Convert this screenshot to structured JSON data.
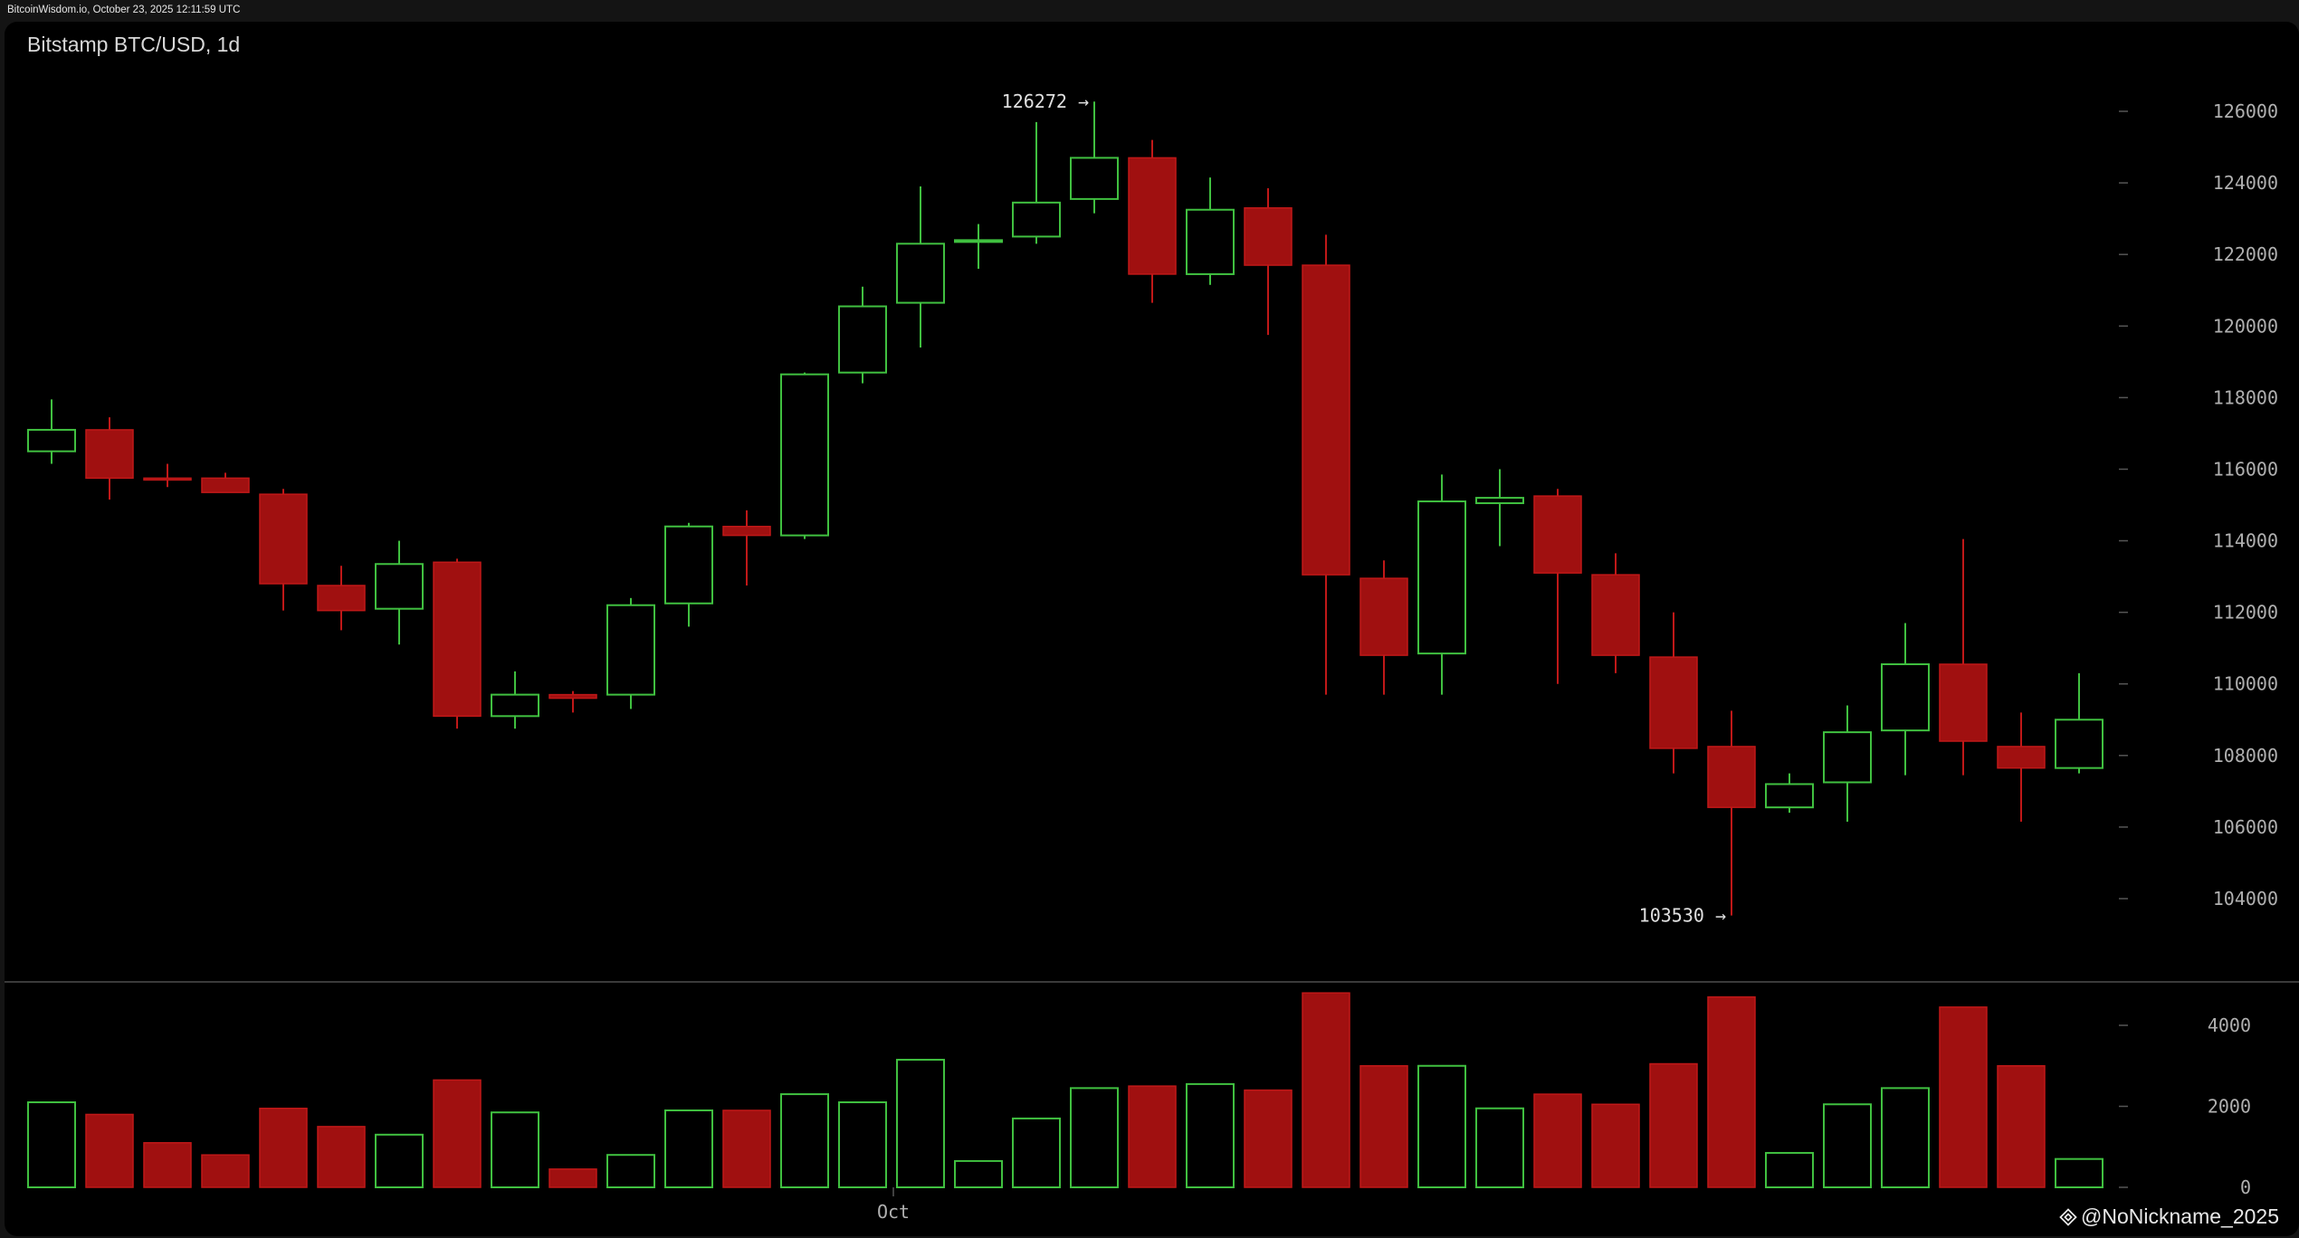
{
  "header": {
    "source_text": "BitcoinWisdom.io, October 23, 2025 12:11:59 UTC"
  },
  "chart": {
    "title": "Bitstamp BTC/USD, 1d"
  },
  "watermark": {
    "text": "@NoNickname_2025",
    "icon": "binance-logo-icon"
  },
  "colors": {
    "up": "#40c040",
    "down": "#a01010",
    "down_border": "#c01818",
    "background": "#000000",
    "axis_text": "#b0b0b0"
  },
  "chart_data": {
    "type": "candlestick",
    "title": "Bitstamp BTC/USD, 1d",
    "price_axis": {
      "ticks": [
        104000,
        106000,
        108000,
        110000,
        112000,
        114000,
        116000,
        118000,
        120000,
        122000,
        124000,
        126000
      ],
      "range": [
        101800,
        128500
      ]
    },
    "volume_axis": {
      "ticks": [
        0,
        2000,
        4000
      ],
      "range": [
        0,
        5200
      ]
    },
    "x_axis": {
      "tick_labels": [
        {
          "label": "Oct",
          "at_index": 14
        }
      ]
    },
    "annotations": [
      {
        "text": "126272 →",
        "index": 18,
        "value": 126272
      },
      {
        "text": "103530 →",
        "index": 29,
        "value": 103530
      }
    ],
    "candles": [
      {
        "o": 116500,
        "h": 117950,
        "l": 116150,
        "c": 117100,
        "v": 2100
      },
      {
        "o": 117100,
        "h": 117450,
        "l": 115150,
        "c": 115750,
        "v": 1800
      },
      {
        "o": 115750,
        "h": 116150,
        "l": 115500,
        "c": 115700,
        "v": 1100
      },
      {
        "o": 115750,
        "h": 115900,
        "l": 115350,
        "c": 115350,
        "v": 800
      },
      {
        "o": 115300,
        "h": 115450,
        "l": 112050,
        "c": 112800,
        "v": 1950
      },
      {
        "o": 112750,
        "h": 113300,
        "l": 111500,
        "c": 112050,
        "v": 1500
      },
      {
        "o": 112100,
        "h": 114000,
        "l": 111100,
        "c": 113350,
        "v": 1300
      },
      {
        "o": 113400,
        "h": 113500,
        "l": 108750,
        "c": 109100,
        "v": 2650
      },
      {
        "o": 109100,
        "h": 110350,
        "l": 108750,
        "c": 109700,
        "v": 1850
      },
      {
        "o": 109700,
        "h": 109800,
        "l": 109200,
        "c": 109600,
        "v": 450
      },
      {
        "o": 109700,
        "h": 112400,
        "l": 109300,
        "c": 112200,
        "v": 800
      },
      {
        "o": 112250,
        "h": 114500,
        "l": 111600,
        "c": 114400,
        "v": 1900
      },
      {
        "o": 114400,
        "h": 114850,
        "l": 112750,
        "c": 114150,
        "v": 1900
      },
      {
        "o": 114150,
        "h": 118700,
        "l": 114050,
        "c": 118650,
        "v": 2300
      },
      {
        "o": 118700,
        "h": 121100,
        "l": 118400,
        "c": 120550,
        "v": 2100
      },
      {
        "o": 120650,
        "h": 123900,
        "l": 119400,
        "c": 122300,
        "v": 3150
      },
      {
        "o": 122350,
        "h": 122850,
        "l": 121600,
        "c": 122400,
        "v": 650
      },
      {
        "o": 122500,
        "h": 125700,
        "l": 122300,
        "c": 123450,
        "v": 1700
      },
      {
        "o": 123550,
        "h": 126272,
        "l": 123150,
        "c": 124700,
        "v": 2450
      },
      {
        "o": 124700,
        "h": 125200,
        "l": 120650,
        "c": 121450,
        "v": 2500
      },
      {
        "o": 121450,
        "h": 124150,
        "l": 121150,
        "c": 123250,
        "v": 2550
      },
      {
        "o": 123300,
        "h": 123850,
        "l": 119750,
        "c": 121700,
        "v": 2400
      },
      {
        "o": 121700,
        "h": 122550,
        "l": 109700,
        "c": 113050,
        "v": 4800
      },
      {
        "o": 112950,
        "h": 113450,
        "l": 109700,
        "c": 110800,
        "v": 3000
      },
      {
        "o": 110850,
        "h": 115850,
        "l": 109700,
        "c": 115100,
        "v": 3000
      },
      {
        "o": 115050,
        "h": 116000,
        "l": 113850,
        "c": 115200,
        "v": 1950
      },
      {
        "o": 115250,
        "h": 115450,
        "l": 110000,
        "c": 113100,
        "v": 2300
      },
      {
        "o": 113050,
        "h": 113650,
        "l": 110300,
        "c": 110800,
        "v": 2050
      },
      {
        "o": 110750,
        "h": 112000,
        "l": 107500,
        "c": 108200,
        "v": 3050
      },
      {
        "o": 108250,
        "h": 109250,
        "l": 103530,
        "c": 106550,
        "v": 4700
      },
      {
        "o": 106550,
        "h": 107500,
        "l": 106400,
        "c": 107200,
        "v": 850
      },
      {
        "o": 107250,
        "h": 109400,
        "l": 106150,
        "c": 108650,
        "v": 2050
      },
      {
        "o": 108700,
        "h": 111700,
        "l": 107450,
        "c": 110550,
        "v": 2450
      },
      {
        "o": 110550,
        "h": 114050,
        "l": 107450,
        "c": 108400,
        "v": 4450
      },
      {
        "o": 108250,
        "h": 109200,
        "l": 106150,
        "c": 107650,
        "v": 3000
      },
      {
        "o": 107650,
        "h": 110300,
        "l": 107500,
        "c": 109000,
        "v": 700
      }
    ]
  }
}
